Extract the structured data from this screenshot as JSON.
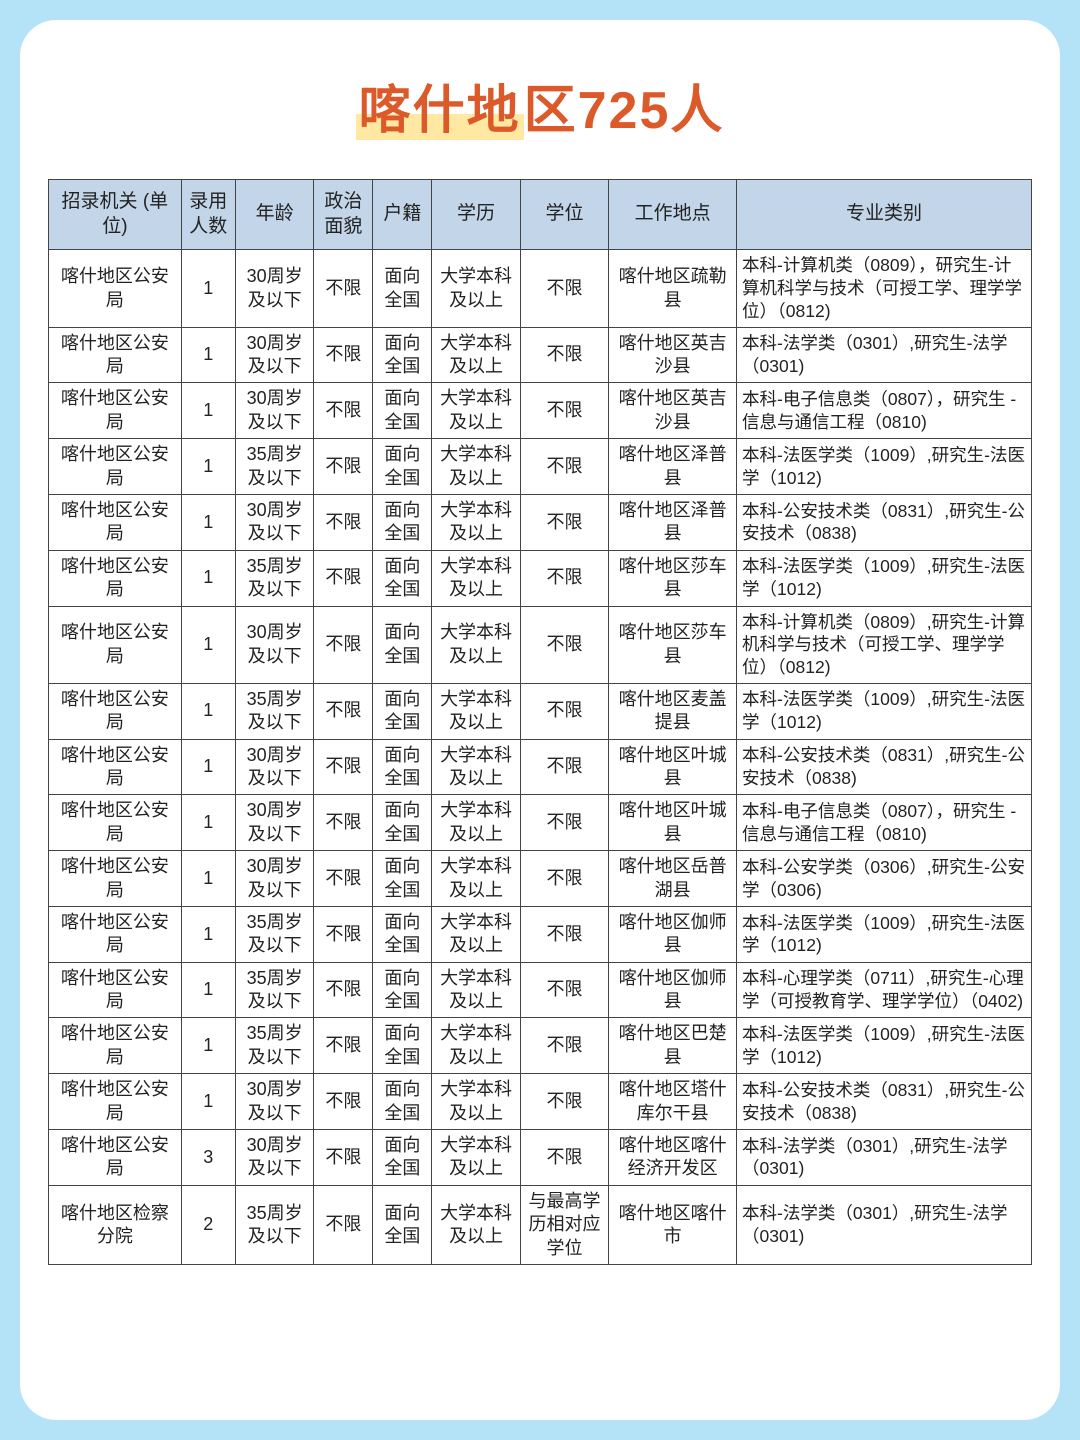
{
  "title_a": "喀什地",
  "title_b": "区725人",
  "columns": [
    "招录机关 (单位)",
    "录用人数",
    "年龄",
    "政治面貌",
    "户籍",
    "学历",
    "学位",
    "工作地点",
    "专业类别"
  ],
  "rows": [
    {
      "org": "喀什地区公安局",
      "num": "1",
      "age": "30周岁及以下",
      "pol": "不限",
      "hk": "面向全国",
      "edu": "大学本科及以上",
      "deg": "不限",
      "loc": "喀什地区疏勒县",
      "maj": "本科-计算机类（0809），研究生-计算机科学与技术（可授工学、理学学位）（0812)"
    },
    {
      "org": "喀什地区公安局",
      "num": "1",
      "age": "30周岁及以下",
      "pol": "不限",
      "hk": "面向全国",
      "edu": "大学本科及以上",
      "deg": "不限",
      "loc": "喀什地区英吉沙县",
      "maj": "本科-法学类（0301）,研究生-法学（0301)"
    },
    {
      "org": "喀什地区公安局",
      "num": "1",
      "age": "30周岁及以下",
      "pol": "不限",
      "hk": "面向全国",
      "edu": "大学本科及以上",
      "deg": "不限",
      "loc": "喀什地区英吉沙县",
      "maj": "本科-电子信息类（0807），研究生 - 信息与通信工程（0810)"
    },
    {
      "org": "喀什地区公安局",
      "num": "1",
      "age": "35周岁及以下",
      "pol": "不限",
      "hk": "面向全国",
      "edu": "大学本科及以上",
      "deg": "不限",
      "loc": "喀什地区泽普县",
      "maj": "本科-法医学类（1009）,研究生-法医学（1012)"
    },
    {
      "org": "喀什地区公安局",
      "num": "1",
      "age": "30周岁及以下",
      "pol": "不限",
      "hk": "面向全国",
      "edu": "大学本科及以上",
      "deg": "不限",
      "loc": "喀什地区泽普县",
      "maj": "本科-公安技术类（0831）,研究生-公安技术（0838)"
    },
    {
      "org": "喀什地区公安局",
      "num": "1",
      "age": "35周岁及以下",
      "pol": "不限",
      "hk": "面向全国",
      "edu": "大学本科及以上",
      "deg": "不限",
      "loc": "喀什地区莎车县",
      "maj": "本科-法医学类（1009）,研究生-法医学（1012)"
    },
    {
      "org": "喀什地区公安局",
      "num": "1",
      "age": "30周岁及以下",
      "pol": "不限",
      "hk": "面向全国",
      "edu": "大学本科及以上",
      "deg": "不限",
      "loc": "喀什地区莎车县",
      "maj": "本科-计算机类（0809）,研究生-计算机科学与技术（可授工学、理学学位）（0812)"
    },
    {
      "org": "喀什地区公安局",
      "num": "1",
      "age": "35周岁及以下",
      "pol": "不限",
      "hk": "面向全国",
      "edu": "大学本科及以上",
      "deg": "不限",
      "loc": "喀什地区麦盖提县",
      "maj": "本科-法医学类（1009）,研究生-法医学（1012)"
    },
    {
      "org": "喀什地区公安局",
      "num": "1",
      "age": "30周岁及以下",
      "pol": "不限",
      "hk": "面向全国",
      "edu": "大学本科及以上",
      "deg": "不限",
      "loc": "喀什地区叶城县",
      "maj": "本科-公安技术类（0831）,研究生-公安技术（0838)"
    },
    {
      "org": "喀什地区公安局",
      "num": "1",
      "age": "30周岁及以下",
      "pol": "不限",
      "hk": "面向全国",
      "edu": "大学本科及以上",
      "deg": "不限",
      "loc": "喀什地区叶城县",
      "maj": "本科-电子信息类（0807），研究生 - 信息与通信工程（0810)"
    },
    {
      "org": "喀什地区公安局",
      "num": "1",
      "age": "30周岁及以下",
      "pol": "不限",
      "hk": "面向全国",
      "edu": "大学本科及以上",
      "deg": "不限",
      "loc": "喀什地区岳普湖县",
      "maj": "本科-公安学类（0306）,研究生-公安学（0306)"
    },
    {
      "org": "喀什地区公安局",
      "num": "1",
      "age": "35周岁及以下",
      "pol": "不限",
      "hk": "面向全国",
      "edu": "大学本科及以上",
      "deg": "不限",
      "loc": "喀什地区伽师县",
      "maj": "本科-法医学类（1009）,研究生-法医学（1012)"
    },
    {
      "org": "喀什地区公安局",
      "num": "1",
      "age": "35周岁及以下",
      "pol": "不限",
      "hk": "面向全国",
      "edu": "大学本科及以上",
      "deg": "不限",
      "loc": "喀什地区伽师县",
      "maj": "本科-心理学类（0711）,研究生-心理学（可授教育学、理学学位）（0402)"
    },
    {
      "org": "喀什地区公安局",
      "num": "1",
      "age": "35周岁及以下",
      "pol": "不限",
      "hk": "面向全国",
      "edu": "大学本科及以上",
      "deg": "不限",
      "loc": "喀什地区巴楚县",
      "maj": "本科-法医学类（1009）,研究生-法医学（1012)"
    },
    {
      "org": "喀什地区公安局",
      "num": "1",
      "age": "30周岁及以下",
      "pol": "不限",
      "hk": "面向全国",
      "edu": "大学本科及以上",
      "deg": "不限",
      "loc": "喀什地区塔什库尔干县",
      "maj": "本科-公安技术类（0831）,研究生-公安技术（0838)"
    },
    {
      "org": "喀什地区公安局",
      "num": "3",
      "age": "30周岁及以下",
      "pol": "不限",
      "hk": "面向全国",
      "edu": "大学本科及以上",
      "deg": "不限",
      "loc": "喀什地区喀什经济开发区",
      "maj": "本科-法学类（0301）,研究生-法学（0301)"
    },
    {
      "org": "喀什地区检察分院",
      "num": "2",
      "age": "35周岁及以下",
      "pol": "不限",
      "hk": "面向全国",
      "edu": "大学本科及以上",
      "deg": "与最高学历相对应学位",
      "loc": "喀什地区喀什市",
      "maj": "本科-法学类（0301）,研究生-法学（0301)"
    }
  ]
}
